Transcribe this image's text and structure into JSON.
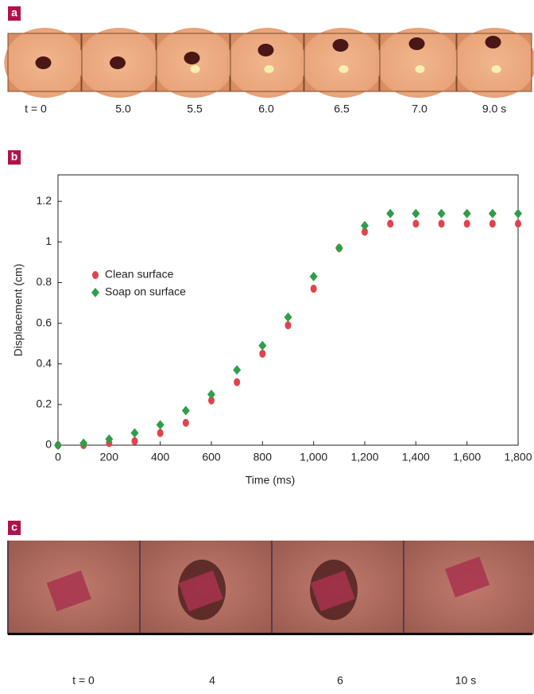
{
  "panel_a": {
    "label": "a",
    "times": [
      "t = 0",
      "5.0",
      "5.5",
      "6.0",
      "6.5",
      "7.0",
      "9.0 s"
    ]
  },
  "panel_c": {
    "label": "c",
    "times": [
      "t = 0",
      "4",
      "6",
      "10 s"
    ]
  },
  "chart_data": {
    "type": "scatter",
    "label": "b",
    "x_label": "Time (ms)",
    "y_label": "Displacement (cm)",
    "x": [
      0,
      100,
      200,
      300,
      400,
      500,
      600,
      700,
      800,
      900,
      1000,
      1100,
      1200,
      1300,
      1400,
      1500,
      1600,
      1700,
      1800
    ],
    "series": [
      {
        "name": "Clean surface",
        "color": "#e0444a",
        "marker": "circle",
        "values": [
          0,
          0,
          0.01,
          0.02,
          0.06,
          0.11,
          0.22,
          0.31,
          0.45,
          0.59,
          0.77,
          0.97,
          1.05,
          1.09,
          1.09,
          1.09,
          1.09,
          1.09,
          1.09
        ]
      },
      {
        "name": "Soap on surface",
        "color": "#2e9e48",
        "marker": "diamond",
        "values": [
          0,
          0.01,
          0.03,
          0.06,
          0.1,
          0.17,
          0.25,
          0.37,
          0.49,
          0.63,
          0.83,
          0.97,
          1.08,
          1.14,
          1.14,
          1.14,
          1.14,
          1.14,
          1.14
        ]
      }
    ],
    "xlim": [
      0,
      1800
    ],
    "xticks": [
      0,
      200,
      400,
      600,
      800,
      {
        "value": 1000,
        "label": "1,000"
      },
      {
        "value": 1200,
        "label": "1,200"
      },
      {
        "value": 1400,
        "label": "1,400"
      },
      {
        "value": 1600,
        "label": "1,600"
      },
      {
        "value": 1800,
        "label": "1,800"
      }
    ],
    "ylim": [
      0,
      1.33
    ],
    "yticks": [
      0,
      0.2,
      0.4,
      0.6,
      0.8,
      1,
      1.2
    ]
  }
}
